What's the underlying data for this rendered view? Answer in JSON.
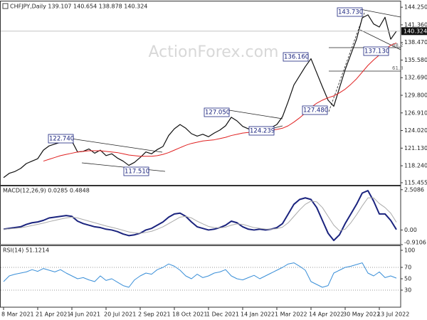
{
  "chart_data": [
    {
      "type": "line",
      "title": "CHFJPY,Daily 139.107 140.654 138.878 140.324",
      "watermark": "ActionForex.com",
      "ylim": [
        115.1,
        145.2
      ],
      "yticks": [
        115.455,
        {
          "value": 118.24,
          "label": "118.240"
        },
        {
          "value": 121.13,
          "label": "121.130"
        },
        {
          "value": 124.02,
          "label": "124.020"
        },
        {
          "value": 126.91,
          "label": "126.910"
        },
        {
          "value": 129.8,
          "label": "129.800"
        },
        {
          "value": 132.69,
          "label": "132.690"
        },
        {
          "value": 135.58,
          "label": "135.580"
        },
        {
          "value": 138.47,
          "label": "138.470"
        },
        {
          "value": 141.36,
          "label": "141.360"
        },
        {
          "value": 144.25,
          "label": "144.250"
        }
      ],
      "series": [
        {
          "name": "CHFJPY",
          "color": "#111111",
          "values": [
            116.3,
            117.0,
            117.3,
            117.8,
            118.6,
            119.0,
            119.4,
            120.8,
            121.5,
            121.8,
            122.1,
            122.4,
            122.3,
            120.5,
            120.6,
            121.0,
            120.3,
            120.8,
            119.9,
            120.2,
            119.5,
            119.0,
            118.3,
            118.8,
            119.6,
            120.5,
            120.2,
            120.9,
            121.4,
            123.2,
            124.3,
            125.0,
            124.4,
            123.5,
            123.1,
            123.4,
            123.0,
            123.6,
            124.1,
            124.8,
            126.2,
            125.6,
            124.7,
            124.3,
            124.4,
            124.6,
            124.3,
            124.5,
            125.0,
            126.3,
            128.8,
            131.5,
            133.0,
            134.5,
            135.8,
            133.5,
            131.2,
            129.0,
            128.0,
            131.0,
            134.0,
            136.5,
            139.0,
            142.5,
            143.0,
            141.5,
            141.0,
            142.6,
            139.0,
            140.324
          ]
        },
        {
          "name": "SMA",
          "color": "#e02020",
          "values": [
            null,
            null,
            null,
            null,
            null,
            null,
            null,
            119.0,
            119.3,
            119.6,
            119.9,
            120.1,
            120.3,
            120.5,
            120.6,
            120.7,
            120.7,
            120.7,
            120.6,
            120.5,
            120.4,
            120.2,
            120.0,
            119.9,
            119.8,
            119.8,
            119.8,
            119.9,
            120.1,
            120.4,
            120.8,
            121.2,
            121.6,
            121.9,
            122.1,
            122.3,
            122.4,
            122.5,
            122.7,
            122.9,
            123.2,
            123.4,
            123.6,
            123.7,
            123.8,
            123.9,
            124.0,
            124.1,
            124.2,
            124.4,
            124.8,
            125.4,
            126.1,
            126.9,
            127.8,
            128.5,
            129.0,
            129.4,
            129.7,
            130.2,
            130.8,
            131.6,
            132.5,
            133.6,
            134.7,
            135.6,
            136.4,
            137.3,
            138.0,
            138.4
          ]
        }
      ],
      "annotations": [
        "122.740",
        "117.510",
        "127.050",
        "124.239",
        "136.160",
        "127.480",
        "143.730",
        "137.130",
        "38.2",
        "61.8"
      ]
    },
    {
      "type": "line",
      "title": "MACD(12,26,9) 0.0285 0.4848",
      "ylim": [
        -0.9106,
        2.72
      ],
      "yticks": [
        2.5086,
        {
          "value": 0,
          "label": "0.00"
        },
        -0.9106
      ],
      "series": [
        {
          "name": "MACD",
          "color": "#1a237e",
          "values": [
            0.05,
            0.1,
            0.15,
            0.2,
            0.35,
            0.45,
            0.5,
            0.6,
            0.75,
            0.8,
            0.85,
            0.9,
            0.85,
            0.55,
            0.4,
            0.3,
            0.2,
            0.15,
            0.05,
            0.0,
            -0.1,
            -0.25,
            -0.35,
            -0.3,
            -0.2,
            0.0,
            0.1,
            0.3,
            0.5,
            0.8,
            1.0,
            1.05,
            0.85,
            0.5,
            0.2,
            0.1,
            0.0,
            0.05,
            0.15,
            0.3,
            0.55,
            0.45,
            0.2,
            0.05,
            0.0,
            0.05,
            0.0,
            0.05,
            0.15,
            0.4,
            1.0,
            1.6,
            1.9,
            2.0,
            1.9,
            1.4,
            0.6,
            -0.2,
            -0.65,
            -0.3,
            0.4,
            1.0,
            1.6,
            2.3,
            2.45,
            1.8,
            1.0,
            1.0,
            0.6,
            0.0285
          ]
        },
        {
          "name": "Signal",
          "color": "#aaaaaa",
          "values": [
            0.05,
            0.07,
            0.1,
            0.14,
            0.2,
            0.28,
            0.35,
            0.43,
            0.52,
            0.6,
            0.68,
            0.75,
            0.8,
            0.75,
            0.65,
            0.55,
            0.45,
            0.35,
            0.25,
            0.17,
            0.08,
            -0.02,
            -0.12,
            -0.18,
            -0.2,
            -0.15,
            -0.08,
            0.05,
            0.2,
            0.4,
            0.6,
            0.8,
            0.85,
            0.75,
            0.55,
            0.38,
            0.22,
            0.15,
            0.13,
            0.18,
            0.3,
            0.38,
            0.35,
            0.25,
            0.15,
            0.1,
            0.06,
            0.05,
            0.08,
            0.18,
            0.45,
            0.85,
            1.25,
            1.6,
            1.8,
            1.75,
            1.4,
            0.85,
            0.3,
            -0.05,
            0.05,
            0.45,
            0.95,
            1.5,
            2.0,
            2.0,
            1.65,
            1.4,
            1.05,
            0.4848
          ]
        }
      ]
    },
    {
      "type": "line",
      "title": "RSI(14) 51.1214",
      "ylim": [
        0,
        107.5
      ],
      "yticks": [
        100,
        70,
        50,
        30
      ],
      "dotted_levels": [
        70,
        30
      ],
      "categories": [
        "8 Mar 2021",
        null,
        null,
        null,
        null,
        null,
        "21 Apr 2021",
        null,
        null,
        null,
        null,
        null,
        "4 Jun 2021",
        null,
        null,
        null,
        null,
        null,
        "20 Jul 2021",
        null,
        null,
        null,
        null,
        null,
        "2 Sep 2021",
        null,
        null,
        null,
        null,
        null,
        "18 Oct 2021",
        null,
        null,
        null,
        null,
        null,
        "1 Dec 2021",
        null,
        null,
        null,
        null,
        null,
        "14 Jan 2022",
        null,
        null,
        null,
        null,
        null,
        "1 Mar 2022",
        null,
        null,
        null,
        null,
        null,
        "14 Apr 2022",
        null,
        null,
        null,
        null,
        null,
        "30 May 2022",
        null,
        null,
        null,
        null,
        null,
        "13 Jul 2022",
        null,
        null,
        null
      ],
      "series": [
        {
          "name": "RSI",
          "color": "#3a8fd8",
          "values": [
            45,
            55,
            58,
            60,
            62,
            66,
            63,
            68,
            65,
            62,
            66,
            60,
            55,
            50,
            52,
            48,
            45,
            55,
            47,
            50,
            44,
            38,
            35,
            48,
            55,
            60,
            58,
            66,
            70,
            76,
            72,
            65,
            55,
            50,
            58,
            52,
            55,
            60,
            62,
            66,
            55,
            50,
            48,
            52,
            56,
            50,
            55,
            60,
            65,
            70,
            76,
            78,
            72,
            65,
            45,
            40,
            35,
            38,
            60,
            65,
            70,
            72,
            75,
            78,
            60,
            55,
            62,
            52,
            55,
            51.1214
          ]
        }
      ]
    }
  ]
}
